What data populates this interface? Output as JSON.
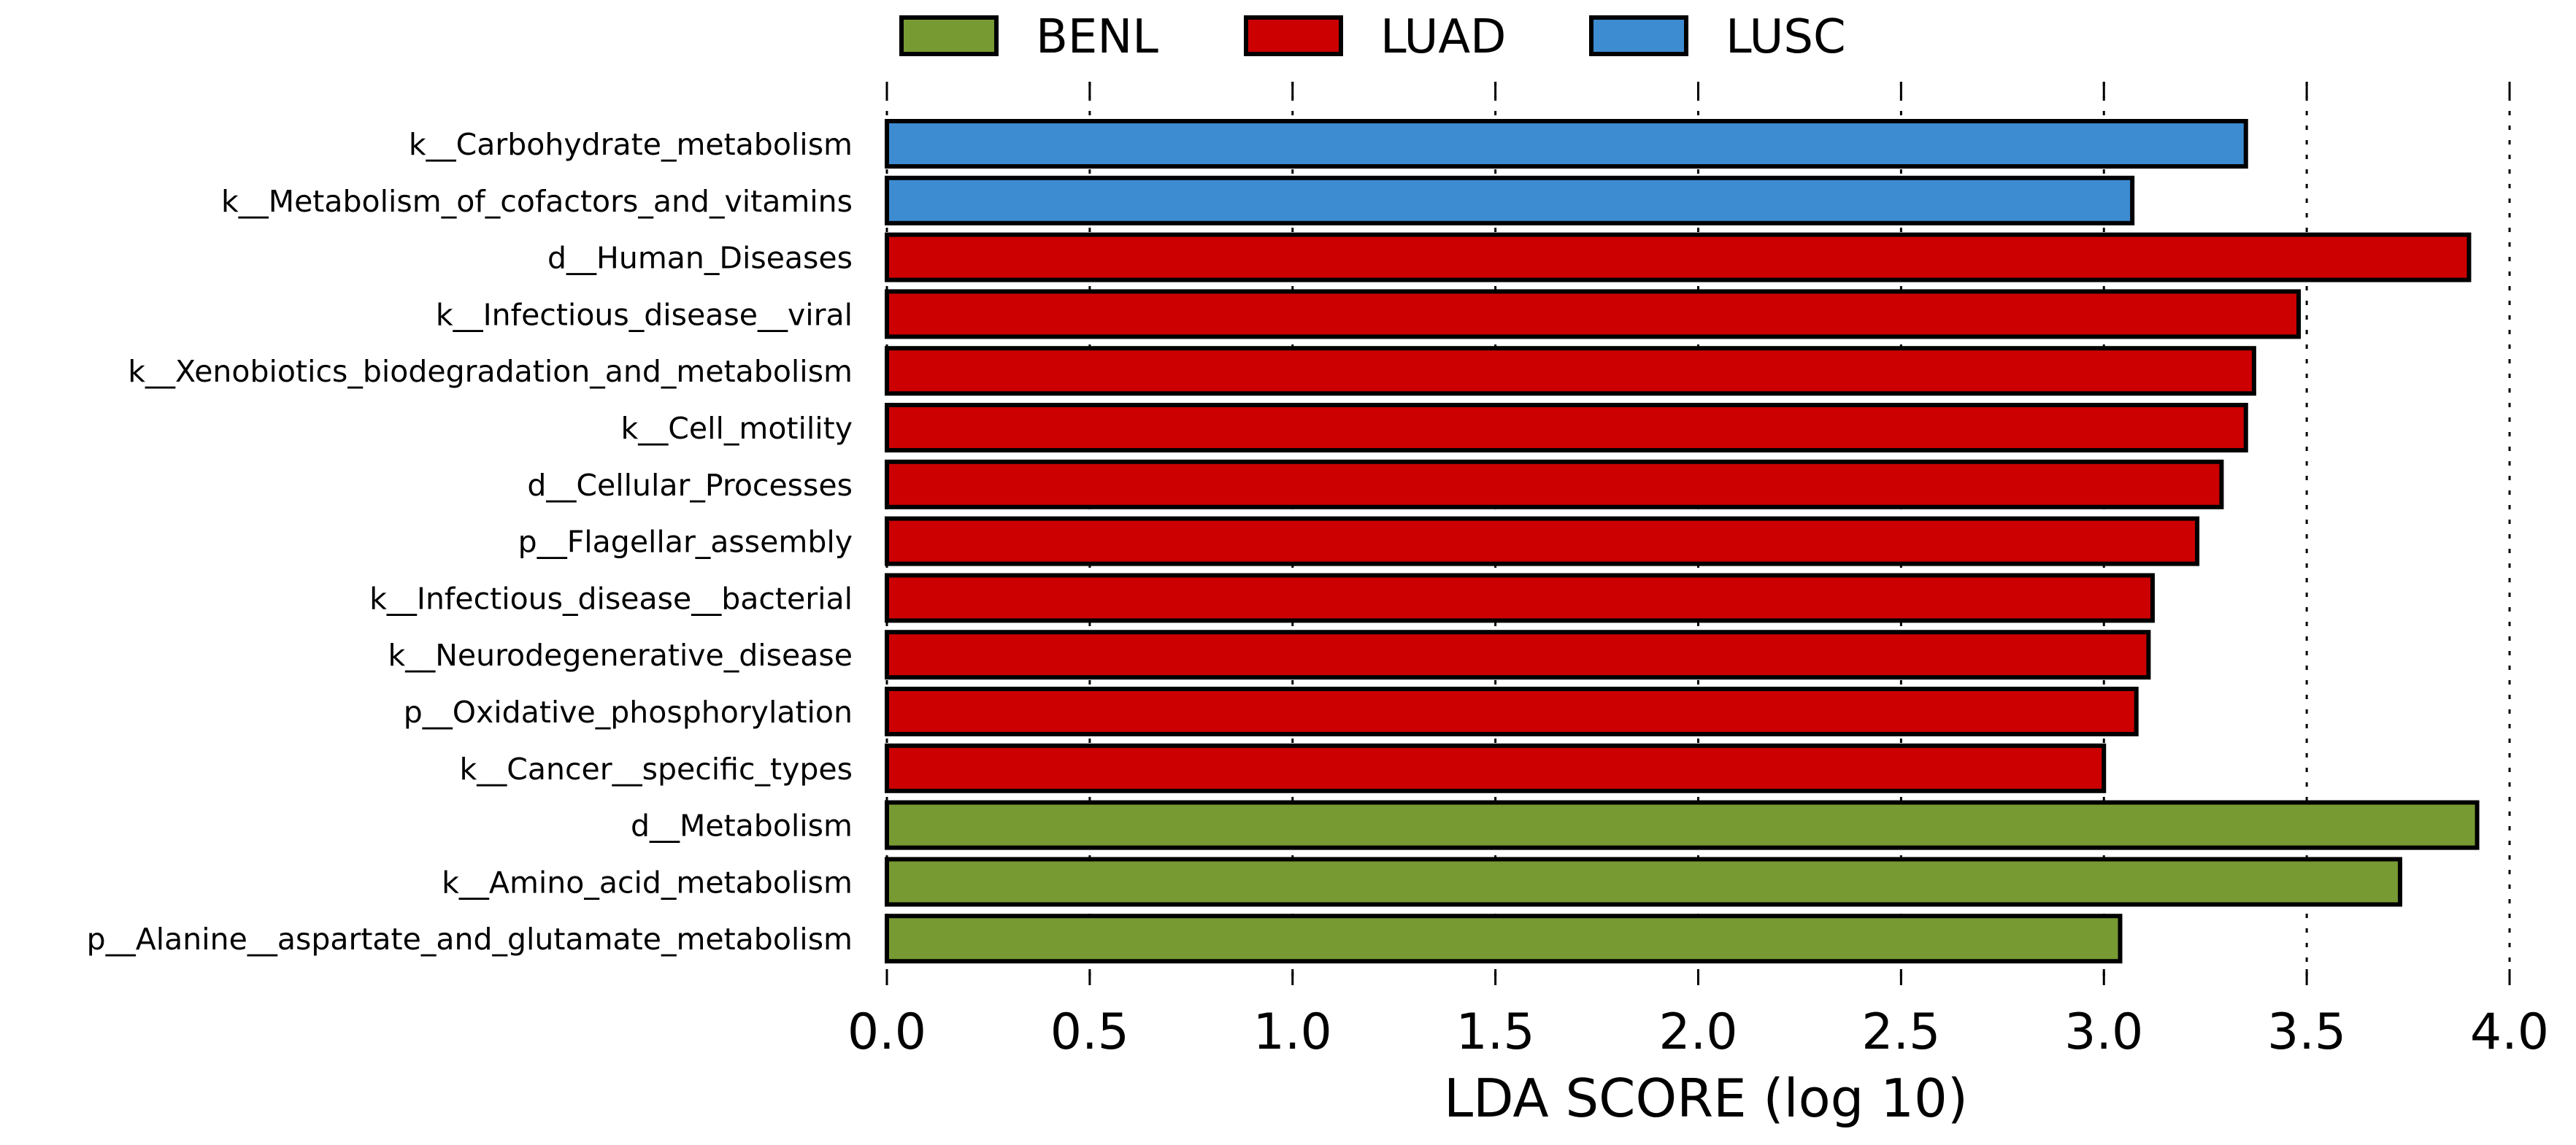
{
  "chart_data": {
    "type": "bar",
    "orientation": "horizontal",
    "title": "",
    "xlabel": "LDA SCORE (log 10)",
    "ylabel": "",
    "xlim": [
      0.0,
      4.0
    ],
    "xticks": [
      "0.0",
      "0.5",
      "1.0",
      "1.5",
      "2.0",
      "2.5",
      "3.0",
      "3.5",
      "4.0"
    ],
    "grid": "vertical dotted",
    "legend_position": "top-center",
    "legend": [
      {
        "name": "BENL",
        "color": "#779a33"
      },
      {
        "name": "LUAD",
        "color": "#cc0000"
      },
      {
        "name": "LUSC",
        "color": "#3d8bd0"
      }
    ],
    "bars": [
      {
        "label": "k__Carbohydrate_metabolism",
        "value": 3.35,
        "group": "LUSC"
      },
      {
        "label": "k__Metabolism_of_cofactors_and_vitamins",
        "value": 3.07,
        "group": "LUSC"
      },
      {
        "label": "d__Human_Diseases",
        "value": 3.9,
        "group": "LUAD"
      },
      {
        "label": "k__Infectious_disease__viral",
        "value": 3.48,
        "group": "LUAD"
      },
      {
        "label": "k__Xenobiotics_biodegradation_and_metabolism",
        "value": 3.37,
        "group": "LUAD"
      },
      {
        "label": "k__Cell_motility",
        "value": 3.35,
        "group": "LUAD"
      },
      {
        "label": "d__Cellular_Processes",
        "value": 3.29,
        "group": "LUAD"
      },
      {
        "label": "p__Flagellar_assembly",
        "value": 3.23,
        "group": "LUAD"
      },
      {
        "label": "k__Infectious_disease__bacterial",
        "value": 3.12,
        "group": "LUAD"
      },
      {
        "label": "k__Neurodegenerative_disease",
        "value": 3.11,
        "group": "LUAD"
      },
      {
        "label": "p__Oxidative_phosphorylation",
        "value": 3.08,
        "group": "LUAD"
      },
      {
        "label": "k__Cancer__specific_types",
        "value": 3.0,
        "group": "LUAD"
      },
      {
        "label": "d__Metabolism",
        "value": 3.92,
        "group": "BENL"
      },
      {
        "label": "k__Amino_acid_metabolism",
        "value": 3.73,
        "group": "BENL"
      },
      {
        "label": "p__Alanine__aspartate_and_glutamate_metabolism",
        "value": 3.04,
        "group": "BENL"
      }
    ]
  }
}
